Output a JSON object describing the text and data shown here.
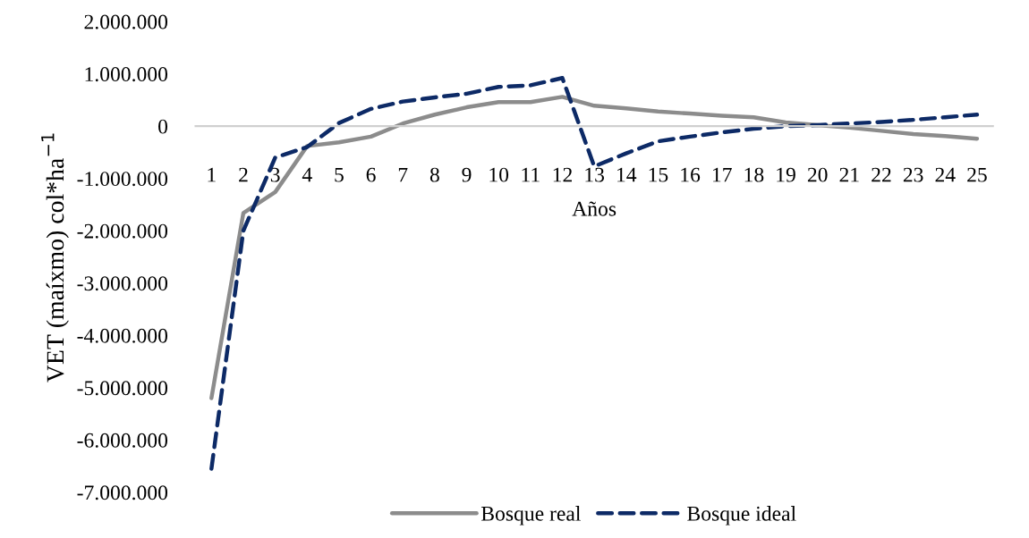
{
  "chart_data": {
    "type": "line",
    "xlabel": "Años",
    "ylabel": "VET (maíxmo) col*ha$^{−1}$",
    "categories": [
      "1",
      "2",
      "3",
      "4",
      "5",
      "6",
      "7",
      "8",
      "9",
      "10",
      "11",
      "12",
      "13",
      "14",
      "15",
      "16",
      "17",
      "18",
      "19",
      "20",
      "21",
      "22",
      "23",
      "24",
      "25"
    ],
    "series": [
      {
        "name": "Bosque real",
        "color": "#8c8c8c",
        "line_style": "solid",
        "values": [
          -5200000,
          -1660000,
          -1260000,
          -380000,
          -310000,
          -200000,
          50000,
          220000,
          360000,
          460000,
          460000,
          560000,
          390000,
          340000,
          280000,
          240000,
          200000,
          170000,
          70000,
          20000,
          -30000,
          -90000,
          -150000,
          -190000,
          -240000
        ]
      },
      {
        "name": "Bosque ideal",
        "color": "#0d2a66",
        "line_style": "dashed",
        "values": [
          -6550000,
          -2000000,
          -600000,
          -400000,
          60000,
          330000,
          470000,
          550000,
          620000,
          750000,
          780000,
          920000,
          -770000,
          -520000,
          -290000,
          -200000,
          -120000,
          -50000,
          0,
          20000,
          50000,
          80000,
          120000,
          170000,
          220000
        ]
      }
    ],
    "ylim": [
      -7000000,
      2000000
    ],
    "yticks": [
      {
        "value": -7000000,
        "label": "-7.000.000"
      },
      {
        "value": -6000000,
        "label": "-6.000.000"
      },
      {
        "value": -5000000,
        "label": "-5.000.000"
      },
      {
        "value": -4000000,
        "label": "-4.000.000"
      },
      {
        "value": -3000000,
        "label": "-3.000.000"
      },
      {
        "value": -2000000,
        "label": "-2.000.000"
      },
      {
        "value": -1000000,
        "label": "-1.000.000"
      },
      {
        "value": 0,
        "label": "0"
      },
      {
        "value": 1000000,
        "label": "1.000.000"
      },
      {
        "value": 2000000,
        "label": "2.000.000"
      }
    ],
    "grid": false,
    "legend": "bottom",
    "marker": "none"
  }
}
